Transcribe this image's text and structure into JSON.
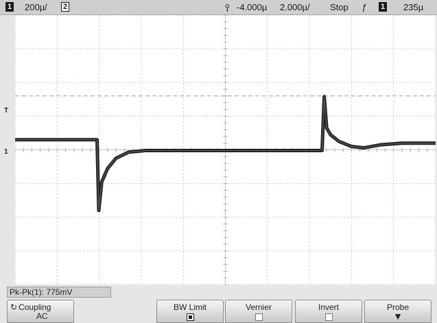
{
  "status_bar": {
    "ch1_number": "1",
    "ch1_scale": "200µ/",
    "ch2_number": "2",
    "delay": "-4.000µ",
    "timebase": "2.000µ/",
    "run_state": "Stop",
    "trigger_source_number": "1",
    "trigger_level": "235µ"
  },
  "markers": {
    "trigger_level_marker": "T",
    "channel1_ground_marker": "1"
  },
  "chart_data": {
    "type": "line",
    "xlim": [
      0,
      10
    ],
    "ylim": [
      -4,
      4
    ],
    "grid": true,
    "series": [
      {
        "x": [
          0,
          1.95,
          1.99,
          2.06,
          2.2,
          2.4,
          2.7,
          3.1,
          3.6,
          4.5,
          6,
          7.3,
          7.35,
          7.41,
          7.5,
          7.7,
          8,
          8.3,
          8.7,
          9.2,
          10
        ],
        "y": [
          0.3,
          0.3,
          -1.8,
          -0.95,
          -0.55,
          -0.25,
          -0.07,
          -0.02,
          -0.02,
          -0.02,
          -0.02,
          -0.02,
          1.58,
          0.65,
          0.45,
          0.25,
          0.1,
          0.06,
          0.15,
          0.2,
          0.2
        ]
      }
    ]
  },
  "measurement": {
    "label": "Pk-Pk(1): 775mV"
  },
  "softkeys": {
    "coupling_label": "Coupling",
    "coupling_value": "AC",
    "bw_limit_label": "BW Limit",
    "vernier_label": "Vernier",
    "invert_label": "Invert",
    "probe_label": "Probe"
  },
  "colors": {
    "trace": "#1f1f1f",
    "grid": "#c8c8c8"
  },
  "icons": {
    "trigger_position": "trigger-position-icon",
    "trigger_edge": "rising-edge-icon",
    "coupling_rotate": "rotate-icon",
    "probe_menu": "down-arrow-icon"
  }
}
